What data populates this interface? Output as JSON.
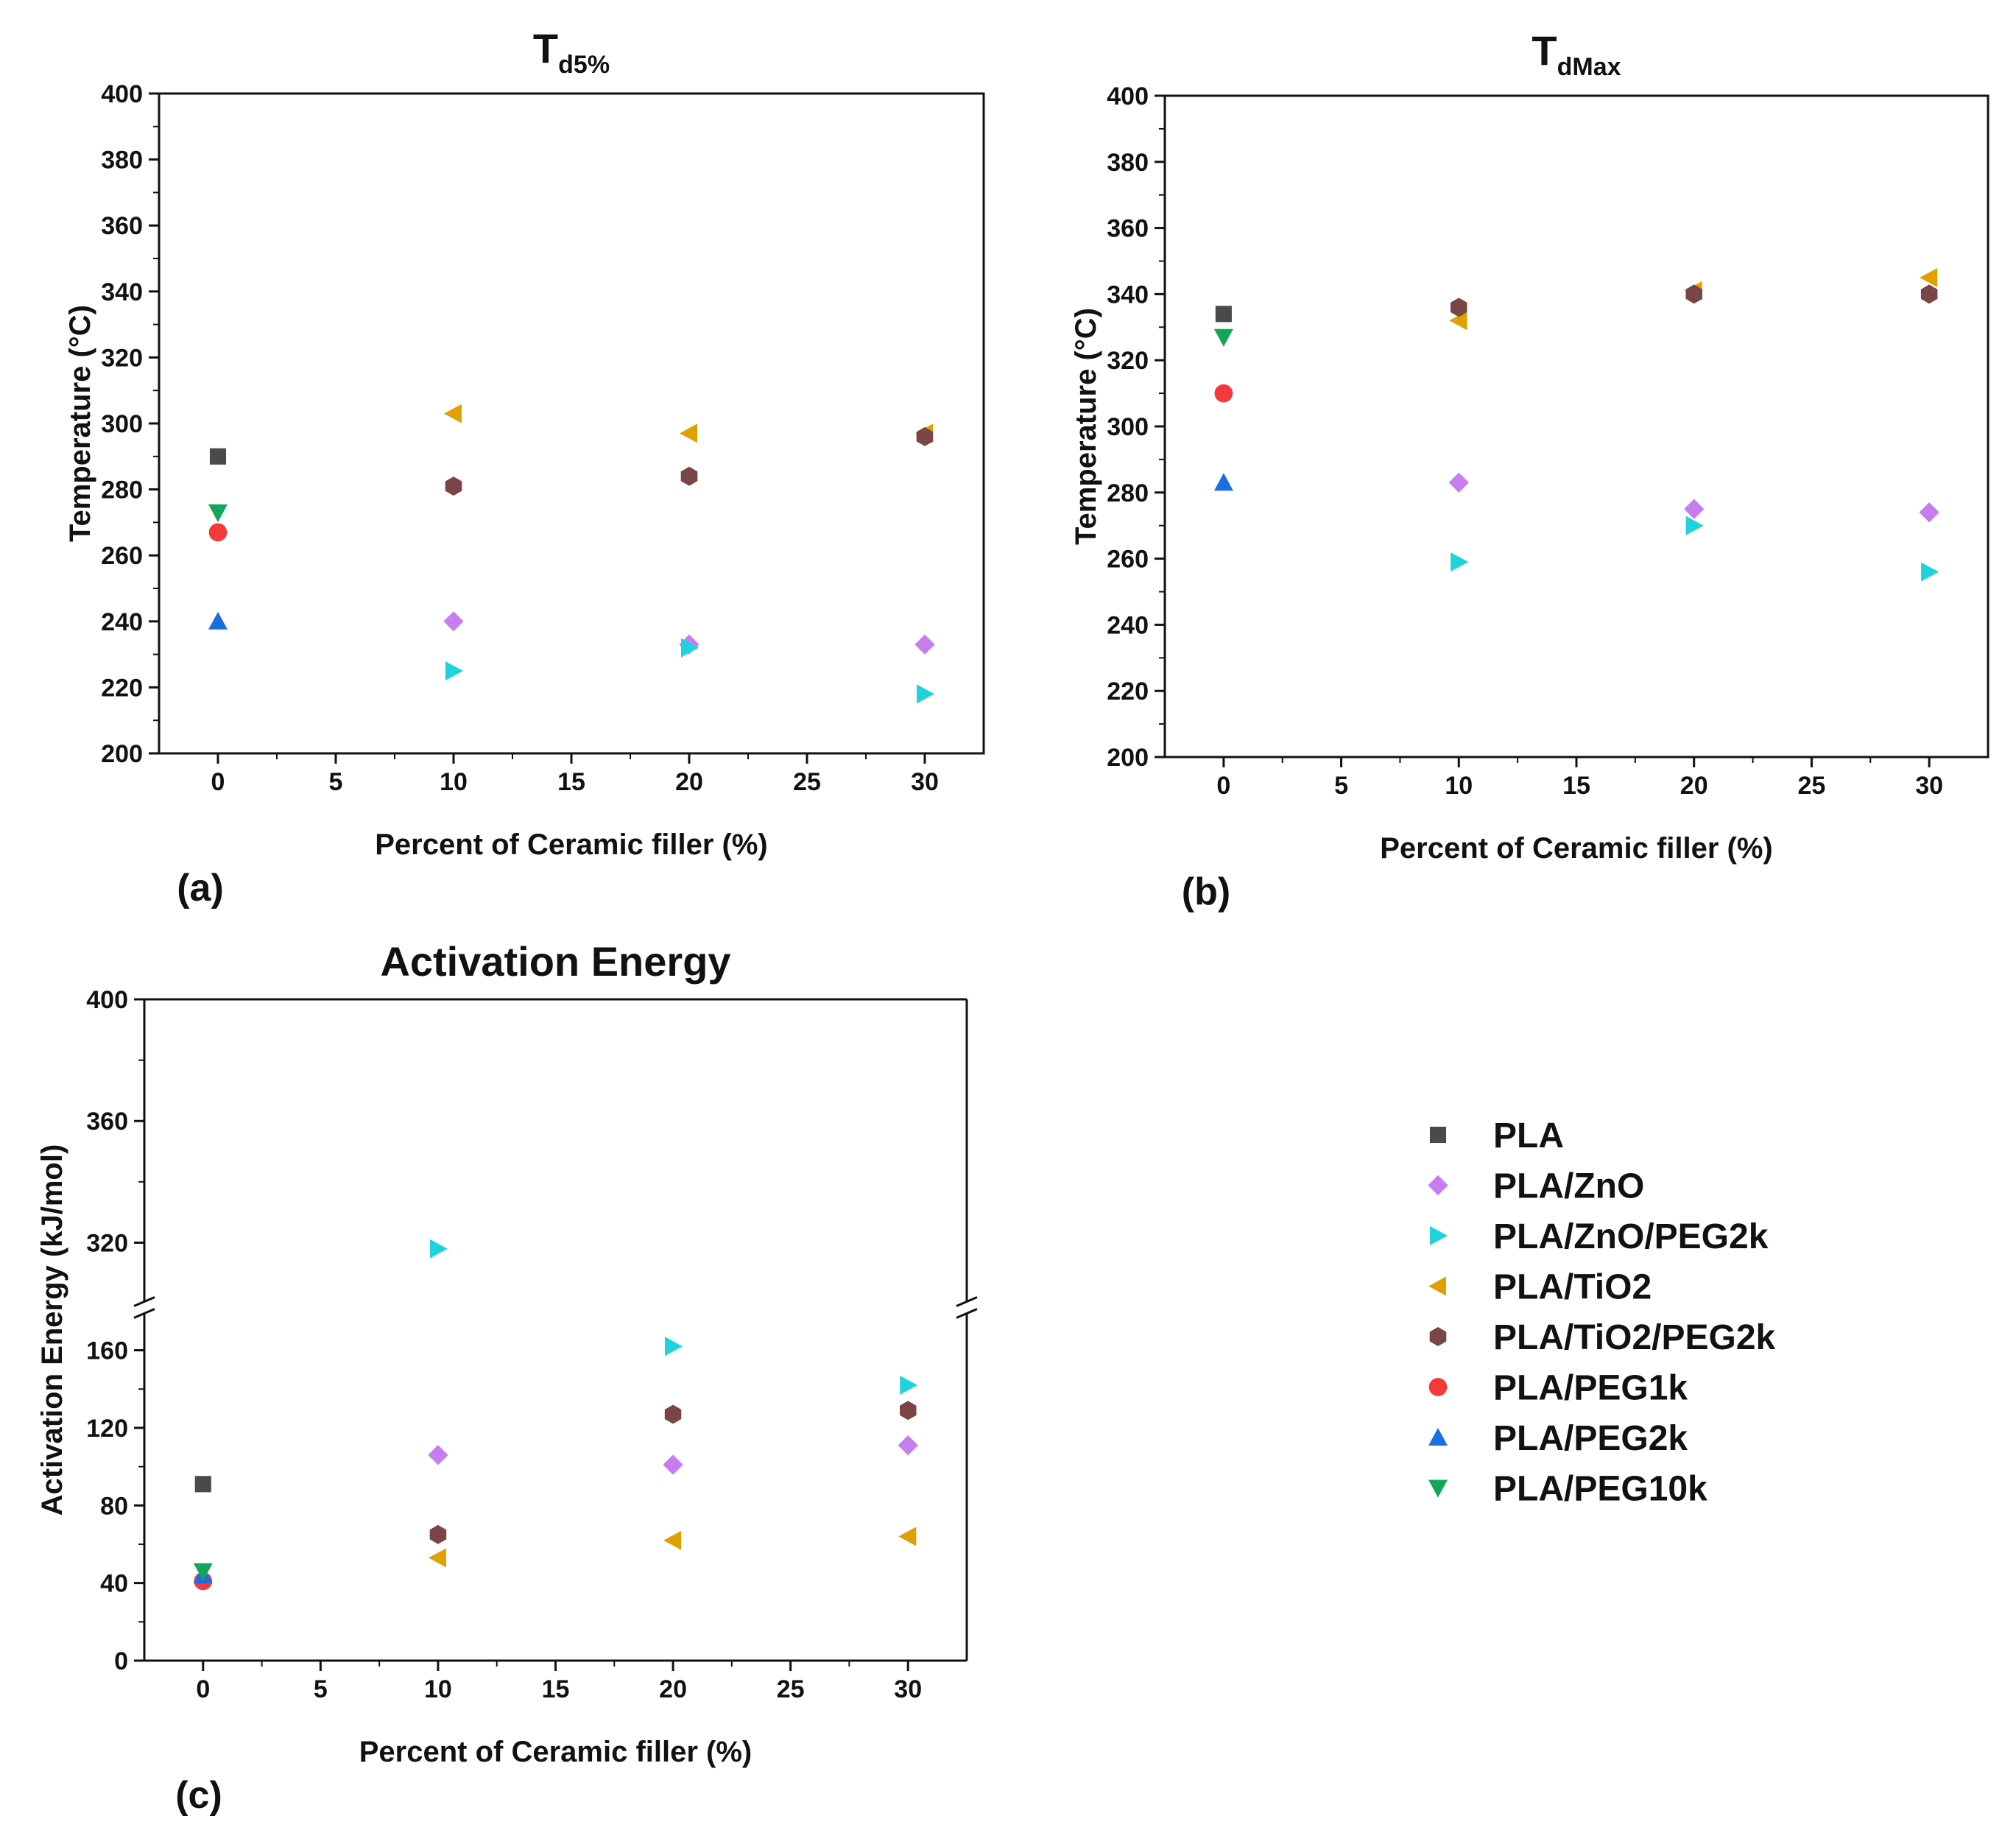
{
  "legend": [
    {
      "name": "PLA",
      "color": "#4a4a4a",
      "marker": "square"
    },
    {
      "name": "PLA/ZnO",
      "color": "#c77cf0",
      "marker": "diamond"
    },
    {
      "name": "PLA/ZnO/PEG2k",
      "color": "#1fd3dc",
      "marker": "tri-right"
    },
    {
      "name": "PLA/TiO2",
      "color": "#e0a000",
      "marker": "tri-left"
    },
    {
      "name": "PLA/TiO2/PEG2k",
      "color": "#7a4545",
      "marker": "hexagon"
    },
    {
      "name": "PLA/PEG1k",
      "color": "#f23a3a",
      "marker": "circle"
    },
    {
      "name": "PLA/PEG2k",
      "color": "#1a6fe0",
      "marker": "tri-up"
    },
    {
      "name": "PLA/PEG10k",
      "color": "#12a65a",
      "marker": "tri-down"
    }
  ],
  "chart_data": [
    {
      "panel": "(a)",
      "type": "scatter",
      "title": "T",
      "title_sub": "d5%",
      "xlabel": "Percent of Ceramic filler (%)",
      "ylabel": "Temperature (°C)",
      "xlim": [
        -2.5,
        32.5
      ],
      "ylim": [
        200,
        400
      ],
      "xticks": [
        0,
        5,
        10,
        15,
        20,
        25,
        30
      ],
      "yticks": [
        200,
        220,
        240,
        260,
        280,
        300,
        320,
        340,
        360,
        380,
        400
      ],
      "series": [
        {
          "name": "PLA",
          "points": [
            [
              0,
              290
            ]
          ]
        },
        {
          "name": "PLA/ZnO",
          "points": [
            [
              10,
              240
            ],
            [
              20,
              233
            ],
            [
              30,
              233
            ]
          ]
        },
        {
          "name": "PLA/ZnO/PEG2k",
          "points": [
            [
              10,
              225
            ],
            [
              20,
              232
            ],
            [
              30,
              218
            ]
          ]
        },
        {
          "name": "PLA/TiO2",
          "points": [
            [
              10,
              303
            ],
            [
              20,
              297
            ],
            [
              30,
              297
            ]
          ]
        },
        {
          "name": "PLA/TiO2/PEG2k",
          "points": [
            [
              10,
              281
            ],
            [
              20,
              284
            ],
            [
              30,
              296
            ]
          ]
        },
        {
          "name": "PLA/PEG1k",
          "points": [
            [
              0,
              267
            ]
          ]
        },
        {
          "name": "PLA/PEG2k",
          "points": [
            [
              0,
              240
            ]
          ]
        },
        {
          "name": "PLA/PEG10k",
          "points": [
            [
              0,
              273
            ]
          ]
        }
      ]
    },
    {
      "panel": "(b)",
      "type": "scatter",
      "title": "T",
      "title_sub": "dMax",
      "xlabel": "Percent of Ceramic filler (%)",
      "ylabel": "Temperature (°C)",
      "xlim": [
        -2.5,
        32.5
      ],
      "ylim": [
        200,
        400
      ],
      "xticks": [
        0,
        5,
        10,
        15,
        20,
        25,
        30
      ],
      "yticks": [
        200,
        220,
        240,
        260,
        280,
        300,
        320,
        340,
        360,
        380,
        400
      ],
      "series": [
        {
          "name": "PLA",
          "points": [
            [
              0,
              334
            ]
          ]
        },
        {
          "name": "PLA/ZnO",
          "points": [
            [
              10,
              283
            ],
            [
              20,
              275
            ],
            [
              30,
              274
            ]
          ]
        },
        {
          "name": "PLA/ZnO/PEG2k",
          "points": [
            [
              10,
              259
            ],
            [
              20,
              270
            ],
            [
              30,
              256
            ]
          ]
        },
        {
          "name": "PLA/TiO2",
          "points": [
            [
              10,
              332
            ],
            [
              20,
              341
            ],
            [
              30,
              345
            ]
          ]
        },
        {
          "name": "PLA/TiO2/PEG2k",
          "points": [
            [
              10,
              336
            ],
            [
              20,
              340
            ],
            [
              30,
              340
            ]
          ]
        },
        {
          "name": "PLA/PEG1k",
          "points": [
            [
              0,
              310
            ]
          ]
        },
        {
          "name": "PLA/PEG2k",
          "points": [
            [
              0,
              283
            ]
          ]
        },
        {
          "name": "PLA/PEG10k",
          "points": [
            [
              0,
              327
            ]
          ]
        }
      ]
    },
    {
      "panel": "(c)",
      "type": "scatter",
      "title": "Activation Energy",
      "title_sub": "",
      "xlabel": "Percent of Ceramic filler (%)",
      "ylabel": "Activation Energy (kJ/mol)",
      "xlim": [
        -2.5,
        32.5
      ],
      "ylim": [
        0,
        400
      ],
      "axis_break": [
        180,
        300
      ],
      "xticks": [
        0,
        5,
        10,
        15,
        20,
        25,
        30
      ],
      "yticks": [
        0,
        40,
        80,
        120,
        160,
        320,
        360,
        400
      ],
      "series": [
        {
          "name": "PLA",
          "points": [
            [
              0,
              91
            ]
          ]
        },
        {
          "name": "PLA/ZnO",
          "points": [
            [
              10,
              106
            ],
            [
              20,
              101
            ],
            [
              30,
              111
            ]
          ]
        },
        {
          "name": "PLA/ZnO/PEG2k",
          "points": [
            [
              10,
              318
            ],
            [
              20,
              162
            ],
            [
              30,
              142
            ]
          ]
        },
        {
          "name": "PLA/TiO2",
          "points": [
            [
              10,
              53
            ],
            [
              20,
              62
            ],
            [
              30,
              64
            ]
          ]
        },
        {
          "name": "PLA/TiO2/PEG2k",
          "points": [
            [
              10,
              65
            ],
            [
              20,
              127
            ],
            [
              30,
              129
            ]
          ]
        },
        {
          "name": "PLA/PEG1k",
          "points": [
            [
              0,
              41
            ]
          ]
        },
        {
          "name": "PLA/PEG2k",
          "points": [
            [
              0,
              44
            ]
          ]
        },
        {
          "name": "PLA/PEG10k",
          "points": [
            [
              0,
              46
            ]
          ]
        }
      ]
    }
  ]
}
